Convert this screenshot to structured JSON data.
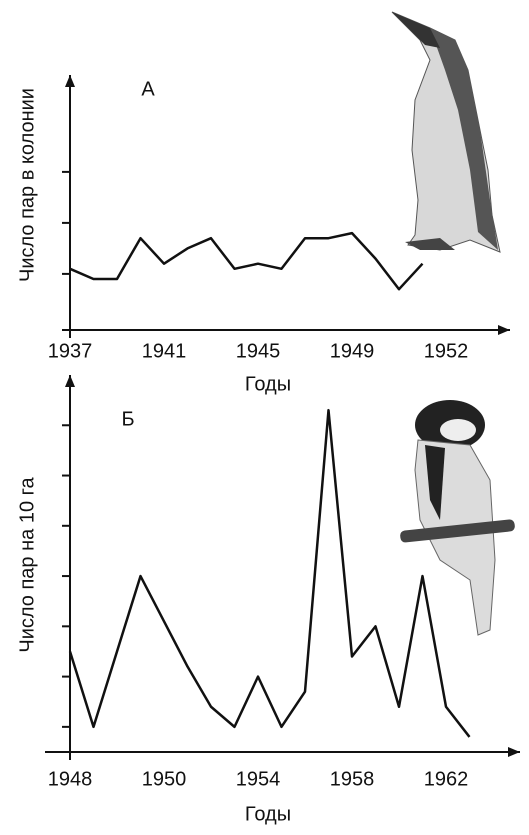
{
  "chart_data": [
    {
      "type": "line",
      "title": "А",
      "ylabel": "Число пар в колонии",
      "xlabel": "Годы",
      "color": "#111111",
      "categories": [
        "1937",
        null,
        null,
        null,
        "1941",
        null,
        null,
        null,
        "1945",
        null,
        null,
        null,
        "1949",
        null,
        null,
        null,
        "1952"
      ],
      "values": [
        1.1,
        0.9,
        0.9,
        1.7,
        1.2,
        1.5,
        1.7,
        1.1,
        1.2,
        1.1,
        1.7,
        1.7,
        1.8,
        1.3,
        0.7,
        1.2,
        null
      ],
      "ylim": [
        -0.1,
        4.9
      ],
      "yticks": [
        1,
        2,
        3
      ]
    },
    {
      "type": "line",
      "title": "Б",
      "ylabel": "Число пар на 10 га",
      "xlabel": "Годы",
      "color": "#111111",
      "categories": [
        "1948",
        null,
        null,
        null,
        "1950",
        null,
        null,
        null,
        "1954",
        null,
        null,
        null,
        "1958",
        null,
        null,
        null,
        "1962",
        null
      ],
      "values": [
        2.5,
        1.0,
        2.5,
        4.0,
        3.1,
        2.2,
        1.4,
        1.0,
        2.0,
        1.0,
        1.7,
        7.3,
        2.4,
        3.0,
        1.4,
        4.0,
        1.4,
        0.8
      ],
      "ylim": [
        0.5,
        8
      ],
      "yticks": [
        1,
        2,
        3,
        4,
        5,
        6,
        7
      ]
    }
  ]
}
